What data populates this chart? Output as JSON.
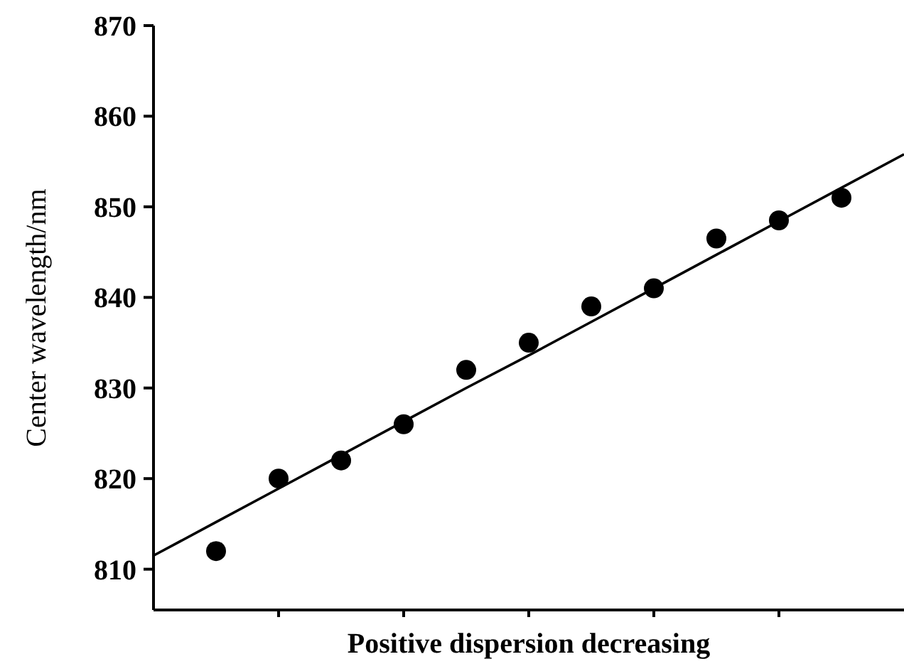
{
  "chart_data": {
    "type": "scatter",
    "xlabel": "Positive dispersion decreasing",
    "ylabel": "Center wavelength/nm",
    "categories": [
      null,
      null,
      null,
      null,
      null,
      null,
      null,
      null,
      null,
      null,
      null,
      null,
      null
    ],
    "ylim": [
      805.5,
      870
    ],
    "yticks": [
      810,
      820,
      830,
      840,
      850,
      860,
      870
    ],
    "tick_labels": "y",
    "grid": false,
    "series": [
      {
        "color": "#000000",
        "marker": "circle",
        "values": [
          null,
          812,
          820,
          822,
          826,
          832,
          835,
          839,
          841,
          846.5,
          848.5,
          851,
          null
        ]
      },
      {
        "type": "line",
        "color": "#000000",
        "line_style": "solid",
        "values": [
          811.5,
          815.2,
          818.9,
          822.6,
          826.3,
          830,
          833.6,
          837.3,
          841,
          844.7,
          848.4,
          852.1,
          855.8
        ]
      }
    ]
  }
}
